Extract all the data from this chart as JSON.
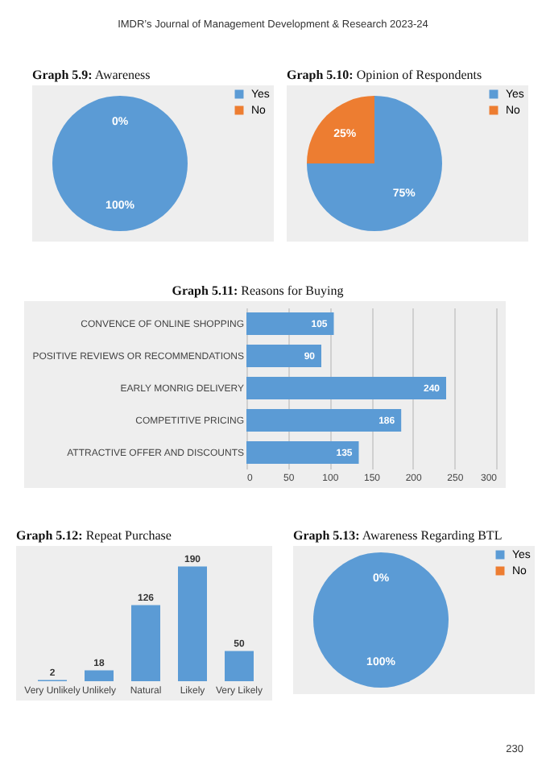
{
  "chart_data": [
    {
      "type": "pie",
      "title": "Graph 5.9: Awareness",
      "categories": [
        "Yes",
        "No"
      ],
      "values": [
        100,
        0
      ],
      "colors": [
        "#5b9bd5",
        "#ed7d31"
      ],
      "value_labels": [
        "100%",
        "0%"
      ],
      "legend": "right",
      "annotations": [
        "IMDR’s Journal of Management Development & Research 2023-24"
      ]
    },
    {
      "type": "pie",
      "title": "Graph 5.10: Opinion of Respondents",
      "categories": [
        "Yes",
        "No"
      ],
      "values": [
        75,
        25
      ],
      "colors": [
        "#5b9bd5",
        "#ed7d31"
      ],
      "value_labels": [
        "75%",
        "25%"
      ],
      "legend": "right"
    },
    {
      "type": "bar",
      "title": "Graph 5.11: Reasons for Buying",
      "orientation": "horizontal",
      "categories": [
        "CONVENCE OF ONLINE SHOPPING",
        "POSITIVE REVIEWS OR RECOMMENDATIONS",
        "EARLY MONRIG DELIVERY",
        "COMPETITIVE PRICING",
        "ATTRACTIVE OFFER AND DISCOUNTS"
      ],
      "values": [
        105,
        90,
        240,
        186,
        135
      ],
      "color": "#5b9bd5",
      "xlim": [
        0,
        300
      ],
      "xticks": [
        0,
        50,
        100,
        150,
        200,
        250,
        300
      ],
      "grid": "x",
      "data_labels": true
    },
    {
      "type": "bar",
      "title": "Graph 5.12: Repeat Purchase",
      "categories": [
        "Very Unlikely",
        "Unlikely",
        "Natural",
        "Likely",
        "Very Likely"
      ],
      "values": [
        2,
        18,
        126,
        190,
        50
      ],
      "color": "#5b9bd5",
      "data_labels": true
    },
    {
      "type": "pie",
      "title": "Graph 5.13: Awareness Regarding BTL",
      "categories": [
        "Yes",
        "No"
      ],
      "values": [
        100,
        0
      ],
      "colors": [
        "#5b9bd5",
        "#ed7d31"
      ],
      "value_labels": [
        "100%",
        "0%"
      ],
      "legend": "right",
      "annotations": [
        "230"
      ]
    }
  ]
}
